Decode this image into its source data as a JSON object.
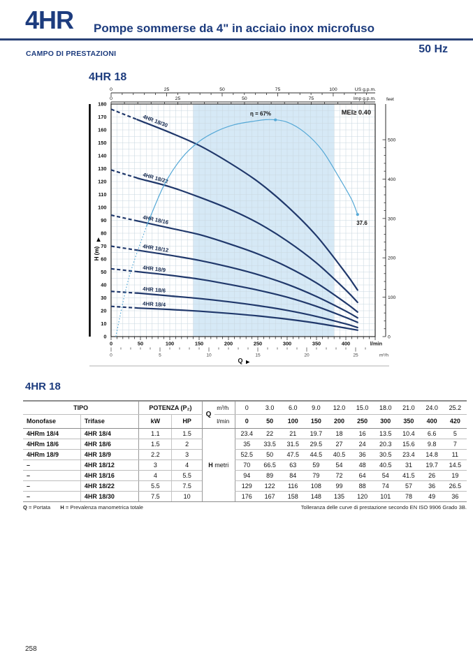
{
  "page": {
    "number": "258"
  },
  "header": {
    "model": "4HR",
    "subtitle": "Pompe sommerse da 4\" in acciaio inox microfuso",
    "section": "CAMPO DI PRESTAZIONI",
    "frequency": "50 Hz"
  },
  "colors": {
    "navy": "#1d3c7e",
    "curve": "#20386b",
    "band": "#d6e9f6",
    "grid": "#c9d7e0",
    "efficiency": "#55a8d6"
  },
  "chart_data": {
    "type": "line",
    "title": "4HR 18",
    "xlabel": "Q",
    "ylabel": "H (m)",
    "ylim": [
      0,
      180
    ],
    "x_units": {
      "primary": "l/min",
      "secondary": "m³/h",
      "top1": "US g.p.m.",
      "top2": "Imp g.p.m.",
      "right_y": "feet"
    },
    "x_lmin": [
      0,
      50,
      100,
      150,
      200,
      250,
      300,
      350,
      400,
      420
    ],
    "series": [
      {
        "name": "4HR 18/30",
        "values": [
          176,
          167,
          158,
          148,
          135,
          120,
          101,
          78,
          49,
          36
        ]
      },
      {
        "name": "4HR 18/22",
        "values": [
          129,
          122,
          116,
          108,
          99,
          88,
          74,
          57,
          36,
          26.5
        ]
      },
      {
        "name": "4HR 18/16",
        "values": [
          94,
          89,
          84,
          79,
          72,
          64,
          54,
          41.5,
          26,
          19
        ]
      },
      {
        "name": "4HR 18/12",
        "values": [
          70,
          66.5,
          63,
          59,
          54,
          48,
          40.5,
          31,
          19.7,
          14.5
        ]
      },
      {
        "name": "4HR 18/9",
        "values": [
          52.5,
          50,
          47.5,
          44.5,
          40.5,
          36,
          30.5,
          23.4,
          14.8,
          11
        ]
      },
      {
        "name": "4HR 18/6",
        "values": [
          35,
          33.5,
          31.5,
          29.5,
          27,
          24,
          20.3,
          15.6,
          9.8,
          7
        ]
      },
      {
        "name": "4HR 18/4",
        "values": [
          23.4,
          22,
          21,
          19.7,
          18,
          16,
          13.5,
          10.4,
          6.6,
          5
        ]
      }
    ],
    "efficiency_curve": {
      "label": "η = 67%",
      "end_value_label": "37.6",
      "peak": [
        280,
        167.8
      ],
      "end": [
        420,
        94.5
      ],
      "points": [
        [
          8,
          0
        ],
        [
          30,
          45
        ],
        [
          60,
          85
        ],
        [
          90,
          117
        ],
        [
          120,
          138
        ],
        [
          150,
          151
        ],
        [
          180,
          159
        ],
        [
          210,
          164
        ],
        [
          240,
          166.5
        ],
        [
          270,
          168
        ],
        [
          300,
          166
        ],
        [
          330,
          158
        ],
        [
          360,
          144
        ],
        [
          390,
          122
        ],
        [
          410,
          106
        ],
        [
          420,
          94.5
        ]
      ]
    },
    "mei_label": "MEI≥ 0.40",
    "operating_band_lmin": [
      140,
      380
    ],
    "ticks": {
      "us_gpm": [
        0,
        25,
        50,
        75,
        100
      ],
      "imp_gpm": [
        0,
        25,
        50,
        75
      ],
      "lmin": [
        0,
        50,
        100,
        150,
        200,
        250,
        300,
        350,
        400
      ],
      "m3h": [
        0,
        5,
        10,
        15,
        20,
        25
      ],
      "feet": [
        0,
        100,
        200,
        300,
        400,
        500
      ],
      "h_step": 10,
      "h_max": 180
    }
  },
  "table": {
    "title": "4HR 18",
    "col_headers": {
      "tipo": "TIPO",
      "monofase": "Monofase",
      "trifase": "Trifase",
      "potenza": "POTENZA (P₂)",
      "kw": "kW",
      "hp": "HP",
      "q": "Q",
      "m3h": "m³/h",
      "lmin": "l/min",
      "h": "H",
      "h_unit": "metri"
    },
    "q_m3h": [
      "0",
      "3.0",
      "6.0",
      "9.0",
      "12.0",
      "15.0",
      "18.0",
      "21.0",
      "24.0",
      "25.2"
    ],
    "q_lmin": [
      "0",
      "50",
      "100",
      "150",
      "200",
      "250",
      "300",
      "350",
      "400",
      "420"
    ],
    "rows": [
      {
        "monofase": "4HRm 18/4",
        "trifase": "4HR 18/4",
        "kw": "1.1",
        "hp": "1.5",
        "h": [
          "23.4",
          "22",
          "21",
          "19.7",
          "18",
          "16",
          "13.5",
          "10.4",
          "6.6",
          "5"
        ]
      },
      {
        "monofase": "4HRm 18/6",
        "trifase": "4HR 18/6",
        "kw": "1.5",
        "hp": "2",
        "h": [
          "35",
          "33.5",
          "31.5",
          "29.5",
          "27",
          "24",
          "20.3",
          "15.6",
          "9.8",
          "7"
        ]
      },
      {
        "monofase": "4HRm 18/9",
        "trifase": "4HR 18/9",
        "kw": "2.2",
        "hp": "3",
        "h": [
          "52.5",
          "50",
          "47.5",
          "44.5",
          "40.5",
          "36",
          "30.5",
          "23.4",
          "14.8",
          "11"
        ]
      },
      {
        "monofase": "–",
        "trifase": "4HR 18/12",
        "kw": "3",
        "hp": "4",
        "h": [
          "70",
          "66.5",
          "63",
          "59",
          "54",
          "48",
          "40.5",
          "31",
          "19.7",
          "14.5"
        ]
      },
      {
        "monofase": "–",
        "trifase": "4HR 18/16",
        "kw": "4",
        "hp": "5.5",
        "h": [
          "94",
          "89",
          "84",
          "79",
          "72",
          "64",
          "54",
          "41.5",
          "26",
          "19"
        ]
      },
      {
        "monofase": "–",
        "trifase": "4HR 18/22",
        "kw": "5.5",
        "hp": "7.5",
        "h": [
          "129",
          "122",
          "116",
          "108",
          "99",
          "88",
          "74",
          "57",
          "36",
          "26.5"
        ]
      },
      {
        "monofase": "–",
        "trifase": "4HR 18/30",
        "kw": "7.5",
        "hp": "10",
        "h": [
          "176",
          "167",
          "158",
          "148",
          "135",
          "120",
          "101",
          "78",
          "49",
          "36"
        ]
      }
    ]
  },
  "footnotes": {
    "q_label": "Q",
    "q_text": "= Portata",
    "h_label": "H",
    "h_text": "= Prevalenza manometrica totale",
    "right": "Tolleranza delle curve di prestazione secondo EN ISO 9906 Grado 3B."
  }
}
